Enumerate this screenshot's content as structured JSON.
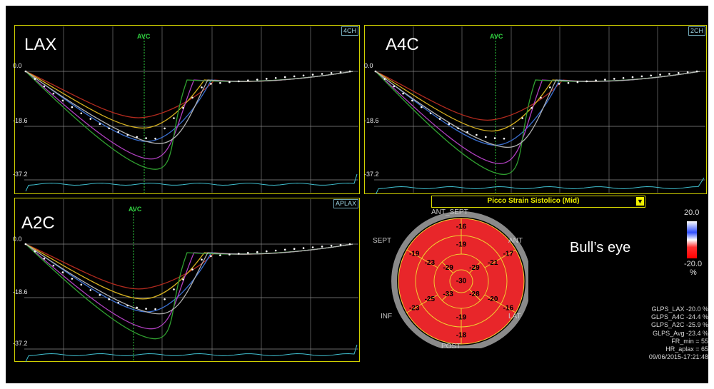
{
  "views": [
    {
      "title": "LAX",
      "tag": "4CH",
      "avc": "AVC",
      "y_labels": [
        "0.0",
        "-18.6",
        "-37.2"
      ]
    },
    {
      "title": "A4C",
      "tag": "2CH",
      "avc": "AVC",
      "y_labels": [
        "0.0",
        "-18.6",
        "-37.2"
      ]
    },
    {
      "title": "A2C",
      "tag": "APLAX",
      "avc": "AVC",
      "y_labels": [
        "0.0",
        "-18.6",
        "-37.2"
      ]
    }
  ],
  "bullseye": {
    "selector": "Picco Strain Sistolico (Mid)",
    "caption": "Bull’s eye",
    "labels": {
      "ant_sept": "ANT_SEPT",
      "ant": "ANT",
      "sept": "SEPT",
      "inf": "INF",
      "lat": "LAT",
      "post": "POST"
    },
    "segments": {
      "outer": [
        "-16",
        "-17",
        "-16",
        "-18",
        "-23",
        "-19"
      ],
      "middle": [
        "-19",
        "-21",
        "-20",
        "-19",
        "-25",
        "-23"
      ],
      "inner": [
        "-29",
        "-29",
        "-28",
        "-33"
      ],
      "apex": "-30"
    },
    "scale": {
      "top": "20.0",
      "bottom": "-20.0",
      "unit": "%"
    }
  },
  "stats": [
    "GLPS_LAX  -20.0 %",
    "GLPS_A4C  -24.4 %",
    "GLPS_A2C  -25.9 %",
    "GLPS_Avg  -23.4 %",
    "FR_min = 55",
    "HR_aplax = 65",
    "09/06/2015-17:21:48"
  ],
  "colors": {
    "grid": "#8a8a8a",
    "frame": "#d0d000",
    "avc": "#30d040",
    "heart_trace": "#40c0d0",
    "segment_fill": "#e8262a",
    "segment_line": "#f0d030"
  }
}
